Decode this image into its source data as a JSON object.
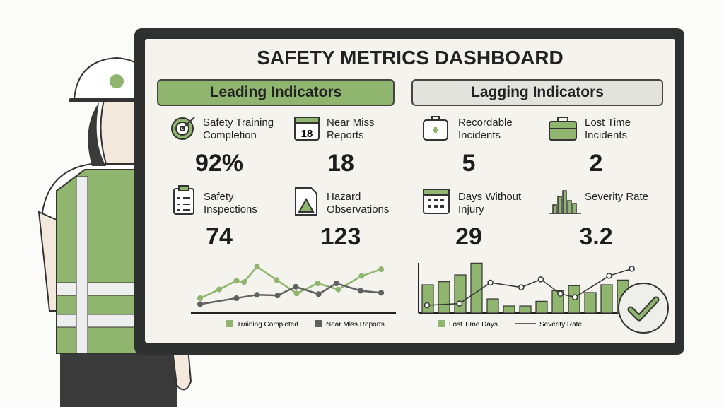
{
  "title": "SAFETY METRICS DASHBOARD",
  "leading": {
    "header": "Leading Indicators",
    "metrics": [
      {
        "label": "Safety Training Completion",
        "value": "92%",
        "icon": "target-icon"
      },
      {
        "label": "Near Miss Reports",
        "value": "18",
        "icon": "calendar-icon",
        "icon_text": "18"
      },
      {
        "label": "Safety Inspections",
        "value": "74",
        "icon": "clipboard-checklist-icon"
      },
      {
        "label": "Hazard Observations",
        "value": "123",
        "icon": "warning-document-icon"
      }
    ]
  },
  "lagging": {
    "header": "Lagging Indicators",
    "metrics": [
      {
        "label": "Recordable Incidents",
        "value": "5",
        "icon": "first-aid-kit-icon"
      },
      {
        "label": "Lost Time Incidents",
        "value": "2",
        "icon": "briefcase-icon"
      },
      {
        "label": "Days Without Injury",
        "value": "29",
        "icon": "calendar-grid-icon"
      },
      {
        "label": "Severity Rate",
        "value": "3.2",
        "icon": "bar-chart-icon"
      }
    ]
  },
  "colors": {
    "green": "#8fb56f",
    "gray": "#5f6060",
    "frame": "#2f3030",
    "screen": "#f4f3ee"
  },
  "chart_data": [
    {
      "type": "line",
      "legend_placement": "bottom",
      "grid": false,
      "series": [
        {
          "name": "Training Completed",
          "color": "#8fb56f",
          "x": [
            0,
            2.05,
            3.9,
            4.7,
            6.1,
            8.2,
            10.35,
            12.6,
            14.8,
            17.3,
            19.4
          ],
          "y": [
            19,
            32,
            45,
            43,
            66,
            46,
            26,
            41,
            32,
            52,
            62
          ]
        },
        {
          "name": "Near Miss Reports",
          "color": "#5f6060",
          "x": [
            0,
            3.9,
            6.1,
            8.3,
            10.25,
            12.7,
            14.6,
            17.2,
            19.4
          ],
          "y": [
            10,
            19,
            24,
            23,
            36,
            25,
            41,
            30,
            27
          ]
        }
      ]
    },
    {
      "type": "bar",
      "legend_placement": "bottom",
      "grid": false,
      "series": [
        {
          "name": "Lost Time Days",
          "color": "#8fb56f",
          "values": [
            120,
            133,
            162,
            212,
            60,
            30,
            30,
            50,
            95,
            116,
            87,
            120,
            140
          ]
        },
        {
          "name": "Severity Rate",
          "type": "line",
          "x": [
            0.3,
            2.3,
            4.2,
            6.1,
            7.3,
            8.5,
            9.4,
            11.5,
            12.9
          ],
          "values": [
            33,
            40,
            129,
            109,
            143,
            82,
            67,
            158,
            188
          ]
        }
      ]
    }
  ]
}
